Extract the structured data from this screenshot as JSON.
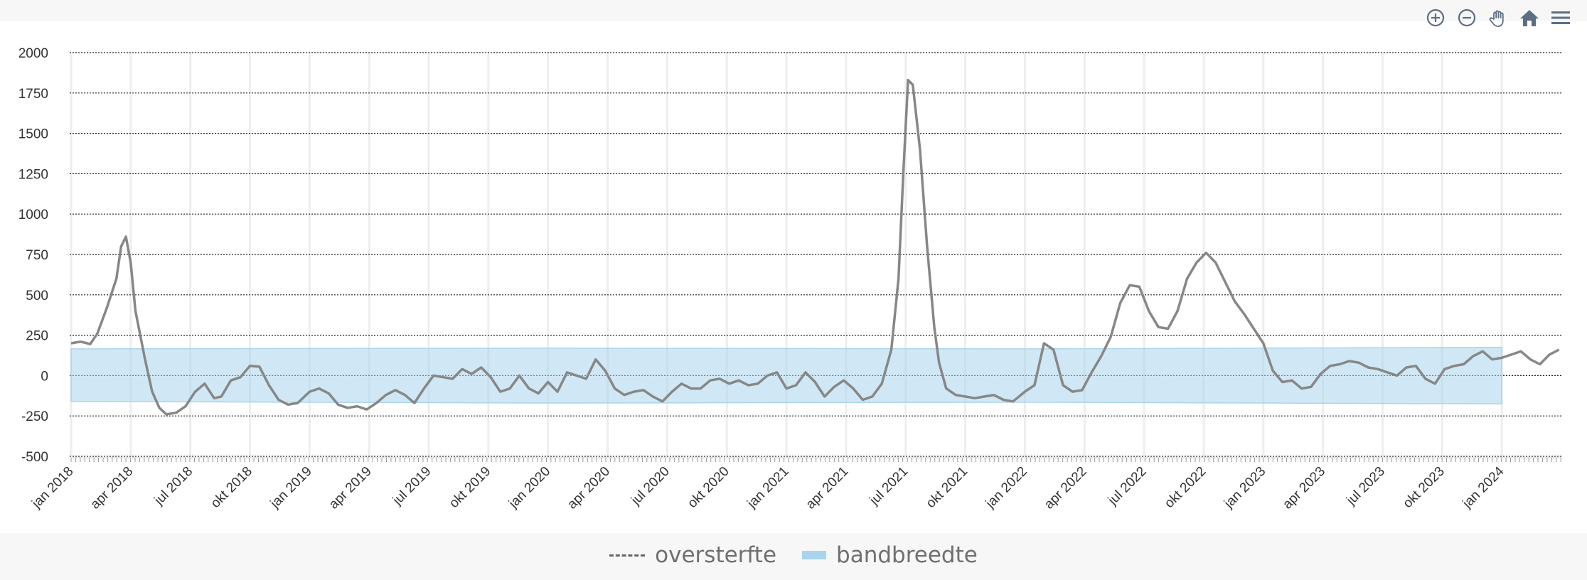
{
  "toolbar": {
    "icons": [
      "zoom-in-icon",
      "zoom-out-icon",
      "pan-hand-icon",
      "home-icon",
      "menu-icon"
    ],
    "color": "#5b6e84"
  },
  "colors": {
    "line": "#878787",
    "band": "#a9d5ec",
    "grid": "#222222"
  },
  "chart_data": {
    "type": "line",
    "title": "",
    "xlabel": "",
    "ylabel": "",
    "ylim": [
      -500,
      2000
    ],
    "yticks": [
      2000,
      1750,
      1500,
      1250,
      1000,
      750,
      500,
      250,
      0,
      -250,
      -500
    ],
    "grid": true,
    "legend_position": "bottom-center",
    "x_tick_labels": [
      "jan 2018",
      "apr 2018",
      "jul 2018",
      "okt 2018",
      "jan 2019",
      "apr 2019",
      "jul 2019",
      "okt 2019",
      "jan 2020",
      "apr 2020",
      "jul 2020",
      "okt 2020",
      "jan 2021",
      "apr 2021",
      "jul 2021",
      "okt 2021",
      "jan 2022",
      "apr 2022",
      "jul 2022",
      "okt 2022",
      "jan 2023",
      "apr 2023",
      "jul 2023",
      "okt 2023",
      "jan 2024"
    ],
    "series": [
      {
        "name": "oversterfte",
        "style": "line",
        "points": [
          [
            2018.0,
            200
          ],
          [
            2018.04,
            210
          ],
          [
            2018.08,
            195
          ],
          [
            2018.11,
            260
          ],
          [
            2018.15,
            420
          ],
          [
            2018.19,
            600
          ],
          [
            2018.21,
            800
          ],
          [
            2018.23,
            860
          ],
          [
            2018.25,
            700
          ],
          [
            2018.27,
            400
          ],
          [
            2018.31,
            100
          ],
          [
            2018.34,
            -100
          ],
          [
            2018.37,
            -200
          ],
          [
            2018.4,
            -240
          ],
          [
            2018.44,
            -230
          ],
          [
            2018.48,
            -190
          ],
          [
            2018.52,
            -100
          ],
          [
            2018.56,
            -50
          ],
          [
            2018.6,
            -140
          ],
          [
            2018.63,
            -130
          ],
          [
            2018.67,
            -30
          ],
          [
            2018.71,
            -10
          ],
          [
            2018.75,
            60
          ],
          [
            2018.79,
            55
          ],
          [
            2018.83,
            -60
          ],
          [
            2018.87,
            -150
          ],
          [
            2018.91,
            -180
          ],
          [
            2018.95,
            -170
          ],
          [
            2019.0,
            -100
          ],
          [
            2019.04,
            -80
          ],
          [
            2019.08,
            -110
          ],
          [
            2019.12,
            -180
          ],
          [
            2019.16,
            -200
          ],
          [
            2019.2,
            -190
          ],
          [
            2019.24,
            -210
          ],
          [
            2019.28,
            -170
          ],
          [
            2019.32,
            -120
          ],
          [
            2019.36,
            -90
          ],
          [
            2019.4,
            -120
          ],
          [
            2019.44,
            -170
          ],
          [
            2019.48,
            -80
          ],
          [
            2019.52,
            0
          ],
          [
            2019.56,
            -10
          ],
          [
            2019.6,
            -20
          ],
          [
            2019.64,
            40
          ],
          [
            2019.68,
            10
          ],
          [
            2019.72,
            50
          ],
          [
            2019.76,
            -10
          ],
          [
            2019.8,
            -100
          ],
          [
            2019.84,
            -80
          ],
          [
            2019.88,
            0
          ],
          [
            2019.92,
            -80
          ],
          [
            2019.96,
            -110
          ],
          [
            2020.0,
            -40
          ],
          [
            2020.04,
            -100
          ],
          [
            2020.08,
            20
          ],
          [
            2020.12,
            0
          ],
          [
            2020.16,
            -20
          ],
          [
            2020.2,
            100
          ],
          [
            2020.24,
            30
          ],
          [
            2020.28,
            -80
          ],
          [
            2020.32,
            -120
          ],
          [
            2020.36,
            -100
          ],
          [
            2020.4,
            -90
          ],
          [
            2020.44,
            -130
          ],
          [
            2020.48,
            -160
          ],
          [
            2020.52,
            -100
          ],
          [
            2020.56,
            -50
          ],
          [
            2020.6,
            -80
          ],
          [
            2020.64,
            -80
          ],
          [
            2020.68,
            -30
          ],
          [
            2020.72,
            -20
          ],
          [
            2020.76,
            -50
          ],
          [
            2020.8,
            -30
          ],
          [
            2020.84,
            -60
          ],
          [
            2020.88,
            -50
          ],
          [
            2020.92,
            0
          ],
          [
            2020.96,
            20
          ],
          [
            2021.0,
            -80
          ],
          [
            2021.04,
            -60
          ],
          [
            2021.08,
            20
          ],
          [
            2021.12,
            -40
          ],
          [
            2021.16,
            -130
          ],
          [
            2021.2,
            -70
          ],
          [
            2021.24,
            -30
          ],
          [
            2021.28,
            -80
          ],
          [
            2021.32,
            -150
          ],
          [
            2021.36,
            -130
          ],
          [
            2021.4,
            -50
          ],
          [
            2021.44,
            160
          ],
          [
            2021.47,
            600
          ],
          [
            2021.49,
            1250
          ],
          [
            2021.51,
            1830
          ],
          [
            2021.53,
            1800
          ],
          [
            2021.56,
            1400
          ],
          [
            2021.59,
            800
          ],
          [
            2021.62,
            300
          ],
          [
            2021.64,
            80
          ],
          [
            2021.67,
            -80
          ],
          [
            2021.71,
            -120
          ],
          [
            2021.75,
            -130
          ],
          [
            2021.79,
            -140
          ],
          [
            2021.83,
            -130
          ],
          [
            2021.87,
            -120
          ],
          [
            2021.91,
            -150
          ],
          [
            2021.95,
            -160
          ],
          [
            2022.0,
            -100
          ],
          [
            2022.04,
            -60
          ],
          [
            2022.08,
            200
          ],
          [
            2022.12,
            160
          ],
          [
            2022.16,
            -60
          ],
          [
            2022.2,
            -100
          ],
          [
            2022.24,
            -90
          ],
          [
            2022.28,
            20
          ],
          [
            2022.32,
            120
          ],
          [
            2022.36,
            240
          ],
          [
            2022.4,
            450
          ],
          [
            2022.44,
            560
          ],
          [
            2022.48,
            550
          ],
          [
            2022.52,
            400
          ],
          [
            2022.56,
            300
          ],
          [
            2022.6,
            290
          ],
          [
            2022.64,
            400
          ],
          [
            2022.68,
            600
          ],
          [
            2022.72,
            700
          ],
          [
            2022.76,
            760
          ],
          [
            2022.8,
            700
          ],
          [
            2022.84,
            580
          ],
          [
            2022.88,
            460
          ],
          [
            2022.92,
            380
          ],
          [
            2022.96,
            290
          ],
          [
            2023.0,
            200
          ],
          [
            2023.04,
            30
          ],
          [
            2023.08,
            -40
          ],
          [
            2023.12,
            -30
          ],
          [
            2023.16,
            -80
          ],
          [
            2023.2,
            -70
          ],
          [
            2023.24,
            10
          ],
          [
            2023.28,
            60
          ],
          [
            2023.32,
            70
          ],
          [
            2023.36,
            90
          ],
          [
            2023.4,
            80
          ],
          [
            2023.44,
            50
          ],
          [
            2023.48,
            40
          ],
          [
            2023.52,
            20
          ],
          [
            2023.56,
            0
          ],
          [
            2023.6,
            50
          ],
          [
            2023.64,
            60
          ],
          [
            2023.68,
            -20
          ],
          [
            2023.72,
            -50
          ],
          [
            2023.76,
            40
          ],
          [
            2023.8,
            60
          ],
          [
            2023.84,
            70
          ],
          [
            2023.88,
            120
          ],
          [
            2023.92,
            150
          ],
          [
            2023.96,
            100
          ],
          [
            2024.0,
            110
          ],
          [
            2024.04,
            130
          ],
          [
            2024.08,
            150
          ],
          [
            2024.12,
            100
          ],
          [
            2024.16,
            70
          ],
          [
            2024.2,
            130
          ],
          [
            2024.24,
            160
          ]
        ]
      },
      {
        "name": "bandbreedte",
        "style": "band",
        "points": [
          [
            2018.0,
            -160,
            165
          ],
          [
            2020.0,
            -170,
            170
          ],
          [
            2022.0,
            -165,
            165
          ],
          [
            2024.0,
            -175,
            175
          ]
        ]
      }
    ]
  }
}
